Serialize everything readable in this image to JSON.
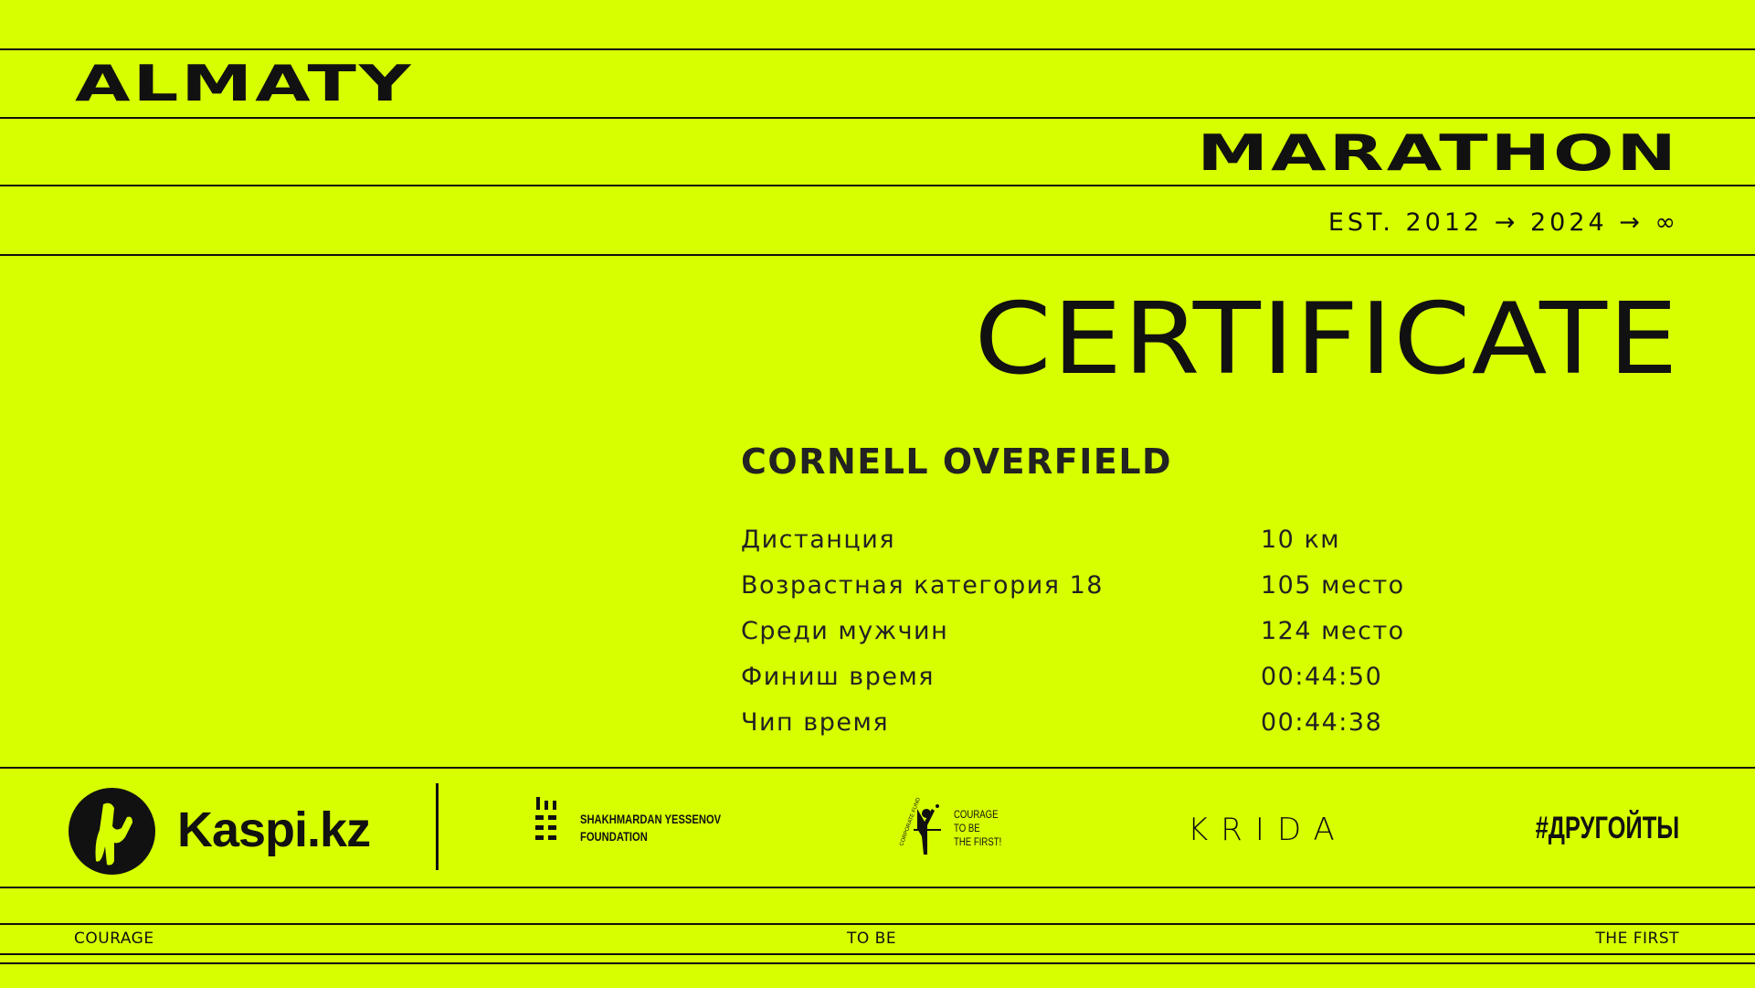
{
  "header": {
    "city": "ALMATY",
    "event": "MARATHON",
    "established": "EST. 2012 → 2024 → ∞"
  },
  "certificate": {
    "title": "CERTIFICATE",
    "participant": "CORNELL OVERFIELD",
    "rows": [
      {
        "label": "Дистанция",
        "value": "10 км"
      },
      {
        "label": "Возрастная категория 18",
        "value": "105 место"
      },
      {
        "label": "Среди мужчин",
        "value": "124 место"
      },
      {
        "label": "Финиш время",
        "value": "00:44:50"
      },
      {
        "label": "Чип время",
        "value": "00:44:38"
      }
    ]
  },
  "sponsors": {
    "kaspi": "Kaspi.kz",
    "yessenov_line1": "SHAKHMARDAN YESSENOV",
    "yessenov_line2": "FOUNDATION",
    "fund_arc": "CORPORATE FUND",
    "fund_line1": "COURAGE",
    "fund_line2": "TO BE",
    "fund_line3": "THE FIRST!",
    "krida": "KRIDA",
    "hashtag": "#ДРУГОЙТЫ"
  },
  "footer": {
    "left": "COURAGE",
    "center": "TO BE",
    "right": "THE FIRST"
  },
  "colors": {
    "background": "#d8ff00",
    "ink": "#111111"
  }
}
